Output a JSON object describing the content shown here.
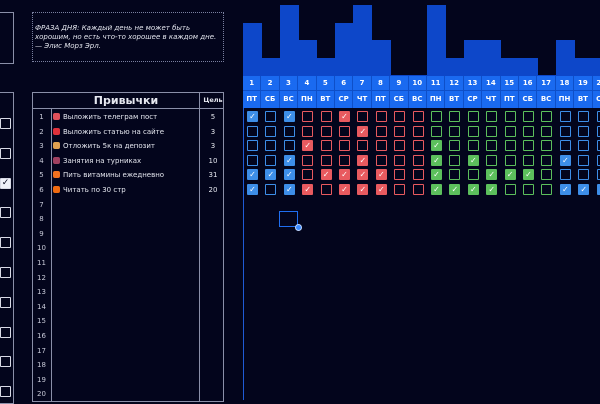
{
  "quote": "ФРАЗА ДНЯ: Каждый день не может быть хорошим, но есть что-то хорошее в каждом дне. — Элис Морз Эрл.",
  "habits": {
    "title": "Привычки",
    "goal_header": "Цель",
    "rows": [
      {
        "num": "1",
        "name": "Выложить телеграм пост",
        "goal": "5",
        "icon": "pill-icon",
        "color": "#e0505a"
      },
      {
        "num": "2",
        "name": "Выложить статью на сайте",
        "goal": "3",
        "icon": "magnet-icon",
        "color": "#e0303a"
      },
      {
        "num": "3",
        "name": "Отложить 5к на депозит",
        "goal": "3",
        "icon": "money-bag-icon",
        "color": "#e0a050"
      },
      {
        "num": "4",
        "name": "Занятия на турниках",
        "goal": "10",
        "icon": "exercise-icon",
        "color": "#a04060"
      },
      {
        "num": "5",
        "name": "Пить витамины ежедневно",
        "goal": "31",
        "icon": "pill-icon",
        "color": "#f07020"
      },
      {
        "num": "6",
        "name": "Читать по 30 стр",
        "goal": "20",
        "icon": "diamond-icon",
        "color": "#f06a10"
      },
      {
        "num": "7",
        "name": "",
        "goal": ""
      },
      {
        "num": "8",
        "name": "",
        "goal": ""
      },
      {
        "num": "9",
        "name": "",
        "goal": ""
      },
      {
        "num": "10",
        "name": "",
        "goal": ""
      },
      {
        "num": "11",
        "name": "",
        "goal": ""
      },
      {
        "num": "12",
        "name": "",
        "goal": ""
      },
      {
        "num": "13",
        "name": "",
        "goal": ""
      },
      {
        "num": "14",
        "name": "",
        "goal": ""
      },
      {
        "num": "15",
        "name": "",
        "goal": ""
      },
      {
        "num": "16",
        "name": "",
        "goal": ""
      },
      {
        "num": "17",
        "name": "",
        "goal": ""
      },
      {
        "num": "18",
        "name": "",
        "goal": ""
      },
      {
        "num": "19",
        "name": "",
        "goal": ""
      },
      {
        "num": "20",
        "name": "",
        "goal": ""
      }
    ]
  },
  "left_checkboxes": [
    false,
    false,
    true,
    false,
    false,
    false,
    false,
    false,
    false,
    false
  ],
  "tracker": {
    "days": [
      "1",
      "2",
      "3",
      "4",
      "5",
      "6",
      "7",
      "8",
      "9",
      "10",
      "11",
      "12",
      "13",
      "14",
      "15",
      "16",
      "17",
      "18",
      "19",
      "20"
    ],
    "weekdays": [
      "ПТ",
      "СБ",
      "ВС",
      "ПН",
      "ВТ",
      "СР",
      "ЧТ",
      "ПТ",
      "СБ",
      "ВС",
      "ПН",
      "ВТ",
      "СР",
      "ЧТ",
      "ПТ",
      "СБ",
      "ВС",
      "ПН",
      "ВТ",
      "СР"
    ],
    "week_colors": [
      "#3d8ee8",
      "#3d8ee8",
      "#3d8ee8",
      "#e85a5f",
      "#e85a5f",
      "#e85a5f",
      "#e85a5f",
      "#e85a5f",
      "#e85a5f",
      "#e85a5f",
      "#5cbf5c",
      "#5cbf5c",
      "#5cbf5c",
      "#5cbf5c",
      "#5cbf5c",
      "#5cbf5c",
      "#5cbf5c",
      "#3d8ee8",
      "#3d8ee8",
      "#3d8ee8"
    ],
    "checks": [
      [
        1,
        0,
        1,
        0,
        0,
        1,
        0,
        0,
        0,
        0,
        0,
        0,
        0,
        0,
        0,
        0,
        0,
        0,
        0,
        0
      ],
      [
        0,
        0,
        0,
        0,
        0,
        0,
        1,
        0,
        0,
        0,
        0,
        0,
        0,
        0,
        0,
        0,
        0,
        0,
        0,
        0
      ],
      [
        0,
        0,
        0,
        1,
        0,
        0,
        0,
        0,
        0,
        0,
        1,
        0,
        0,
        0,
        0,
        0,
        0,
        0,
        0,
        0
      ],
      [
        0,
        0,
        1,
        0,
        0,
        0,
        1,
        0,
        0,
        0,
        1,
        0,
        1,
        0,
        0,
        0,
        0,
        1,
        0,
        0
      ],
      [
        1,
        1,
        1,
        0,
        1,
        1,
        1,
        1,
        0,
        0,
        1,
        0,
        0,
        1,
        1,
        1,
        0,
        0,
        0,
        0
      ],
      [
        1,
        0,
        1,
        1,
        0,
        1,
        1,
        1,
        0,
        0,
        1,
        1,
        1,
        1,
        0,
        0,
        0,
        1,
        1,
        1
      ]
    ]
  },
  "colors": {
    "background": "#03051c",
    "header": "#1a6af0",
    "bars": "#0d47c9"
  }
}
